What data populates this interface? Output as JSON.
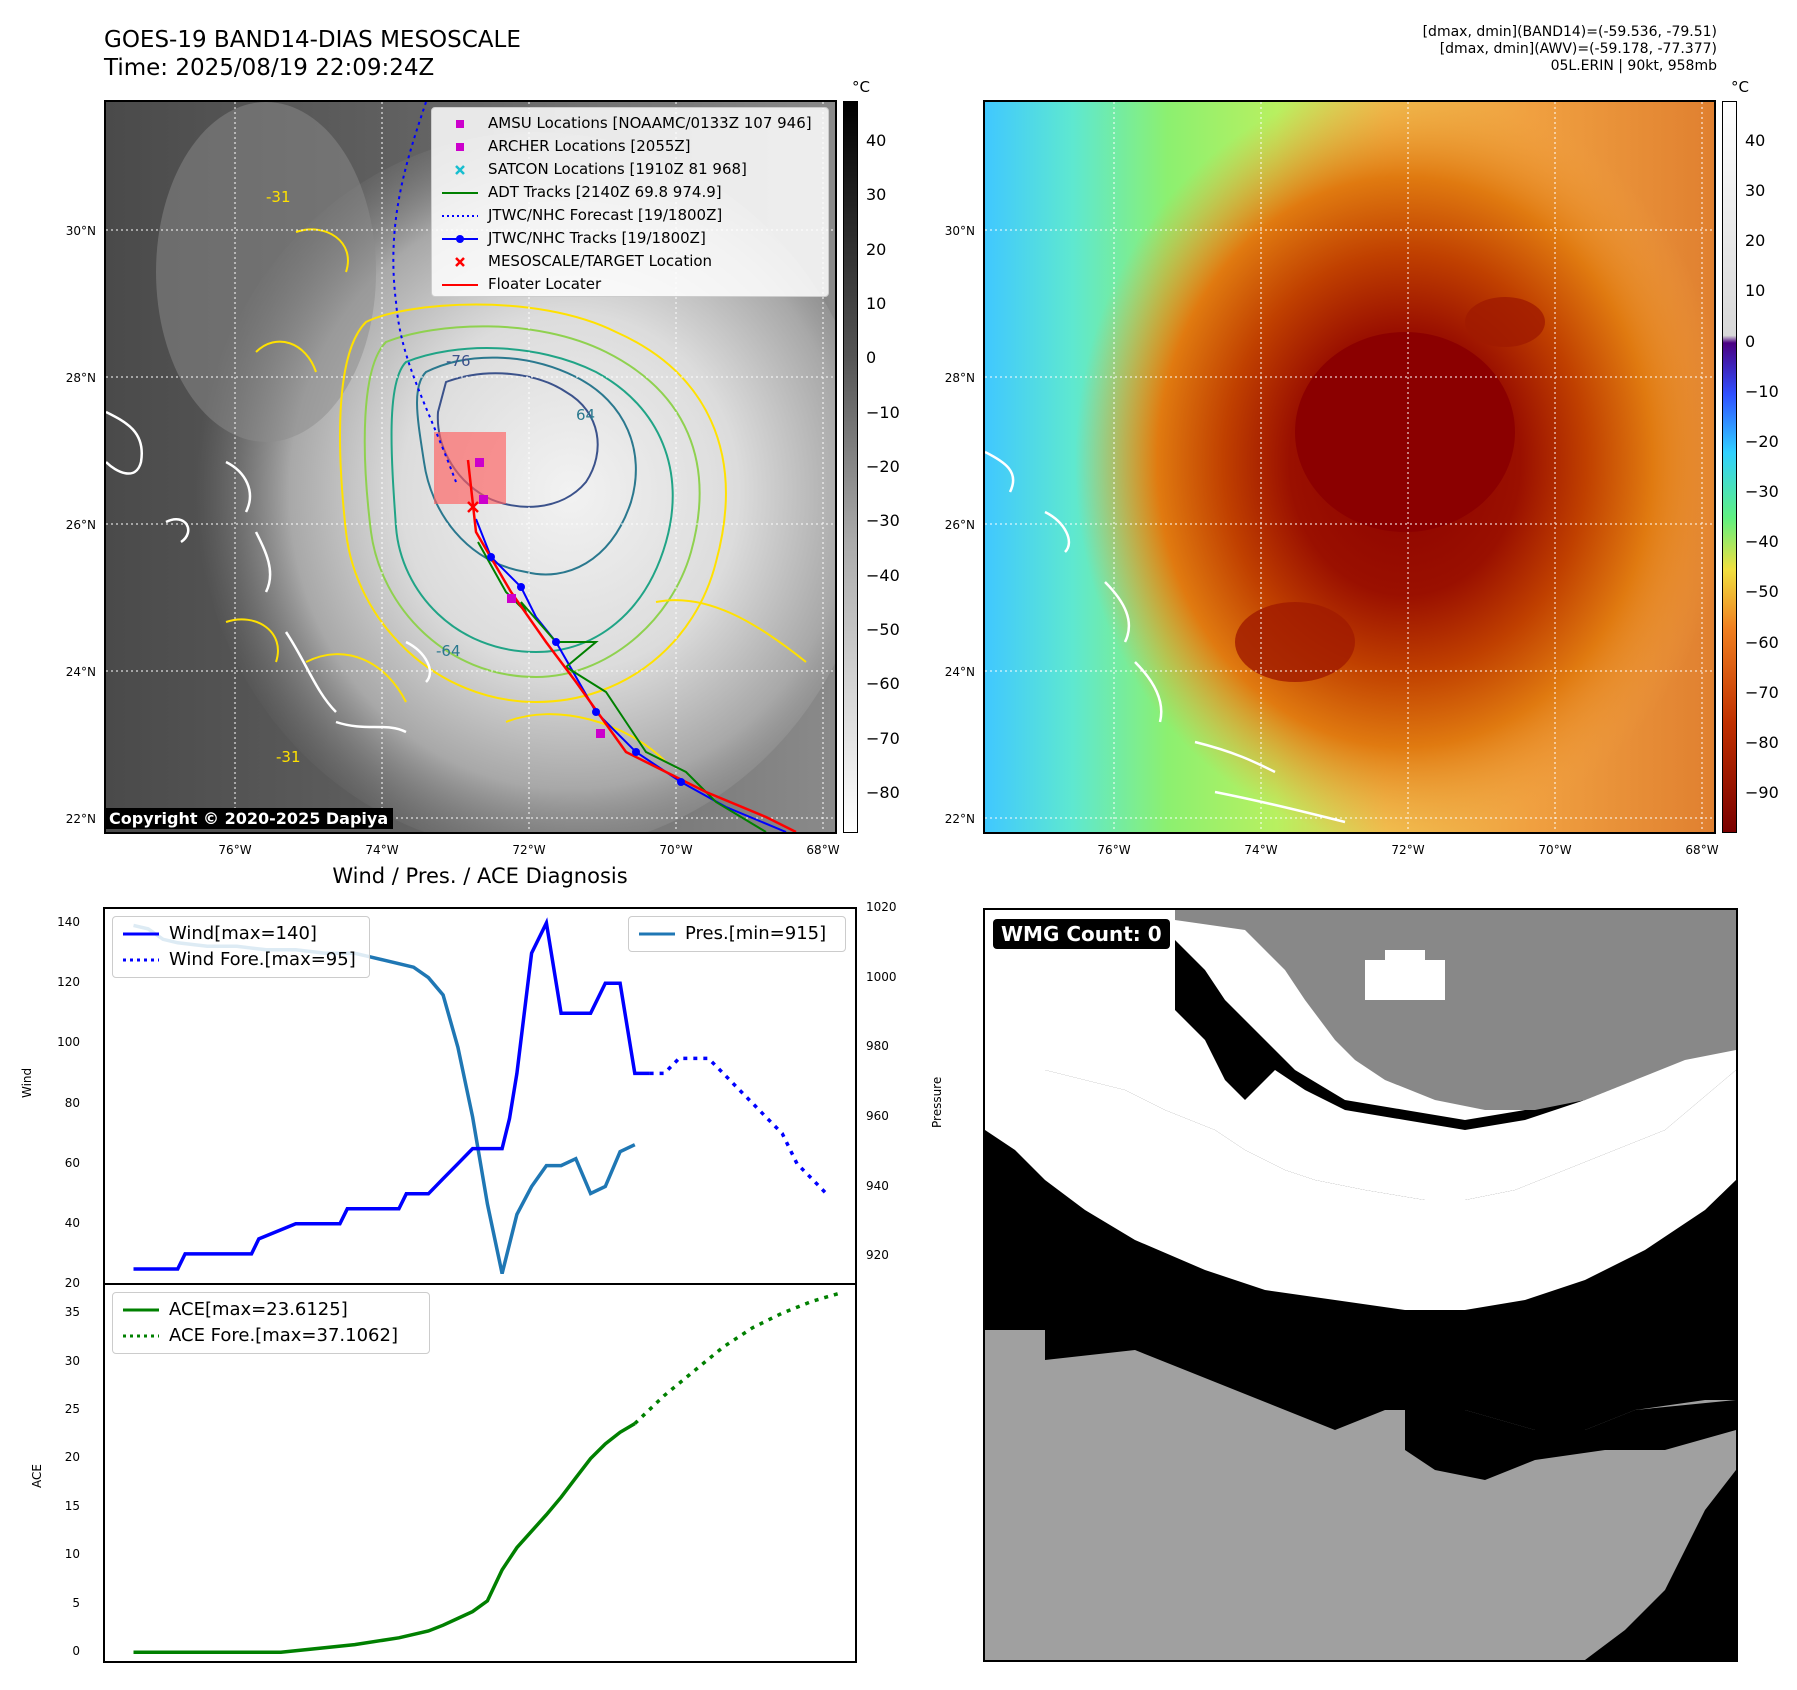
{
  "header": {
    "title_line1": "GOES-19 BAND14-DIAS MESOSCALE",
    "title_line2": "Time: 2025/08/19 22:09:24Z",
    "info_line1": "[dmax, dmin](BAND14)=(-59.536, -79.51)",
    "info_line2": "[dmax, dmin](AWV)=(-59.178, -77.377)",
    "info_line3": "05L.ERIN | 90kt, 958mb"
  },
  "map": {
    "lat_labels": [
      "30°N",
      "28°N",
      "26°N",
      "24°N",
      "22°N"
    ],
    "lon_labels": [
      "76°W",
      "74°W",
      "72°W",
      "70°W",
      "68°W"
    ],
    "copyright": "Copyright © 2020-2025 Dapiya",
    "contour_labels": [
      "-76",
      "-64",
      "64",
      "-31",
      "-31"
    ]
  },
  "legend": {
    "items": [
      "AMSU Locations [NOAAMC/0133Z 107 946]",
      "ARCHER Locations [2055Z]",
      "SATCON Locations [1910Z 81 968]",
      "ADT Tracks [2140Z 69.8 974.9]",
      "JTWC/NHC Forecast [19/1800Z]",
      "JTWC/NHC Tracks [19/1800Z]",
      "MESOSCALE/TARGET Location",
      "Floater Locater"
    ]
  },
  "colorbar_gray": {
    "unit": "°C",
    "ticks": [
      "40",
      "30",
      "20",
      "10",
      "0",
      "−10",
      "−20",
      "−30",
      "−40",
      "−50",
      "−60",
      "−70",
      "−80"
    ]
  },
  "colorbar_color": {
    "unit": "°C",
    "ticks": [
      "40",
      "30",
      "20",
      "10",
      "0",
      "−10",
      "−20",
      "−30",
      "−40",
      "−50",
      "−60",
      "−70",
      "−80",
      "−90"
    ]
  },
  "wmg": {
    "label": "WMG Count: 0"
  },
  "colors": {
    "wind": "#0000ff",
    "pressure": "#1f77b4",
    "ace": "#008000",
    "track_red": "#ff0000",
    "magenta": "#cc00cc",
    "cyan": "#17becf"
  },
  "chart_data": [
    {
      "type": "line",
      "title": "Wind / Pres. / ACE Diagnosis",
      "ylabel": "Wind",
      "y2label": "Pressure",
      "ylim": [
        20,
        145
      ],
      "y2lim": [
        912,
        1020
      ],
      "yticks": [
        "140",
        "120",
        "100",
        "80",
        "60",
        "40",
        "20"
      ],
      "y2ticks": [
        "1020",
        "1000",
        "980",
        "960",
        "940",
        "920"
      ],
      "legend_left": [
        "Wind[max=140]",
        "Wind Fore.[max=95]"
      ],
      "legend_right": [
        "Pres.[min=915]"
      ],
      "x": [
        0,
        3,
        5,
        6,
        8,
        9,
        11,
        12,
        14,
        16,
        18,
        19,
        20,
        21,
        22,
        23,
        24,
        25,
        25.5,
        26,
        27,
        28,
        29,
        30,
        31,
        32,
        33,
        34,
        35
      ],
      "series": [
        {
          "name": "Wind",
          "x": [
            0,
            3,
            3.5,
            5,
            5.5,
            8,
            8.5,
            11,
            11.5,
            14,
            14.5,
            15,
            18,
            18.5,
            20,
            21,
            22,
            23,
            25,
            25.5,
            26,
            27,
            28,
            29,
            30,
            31,
            32,
            33,
            34,
            35
          ],
          "values": [
            25,
            25,
            30,
            30,
            30,
            30,
            35,
            40,
            40,
            40,
            45,
            45,
            45,
            50,
            50,
            55,
            60,
            65,
            65,
            75,
            90,
            130,
            140,
            110,
            110,
            110,
            120,
            120,
            90,
            90
          ]
        },
        {
          "name": "Wind Fore.",
          "x": [
            35,
            36,
            37,
            38,
            39,
            40,
            41,
            42,
            43,
            44,
            45,
            46,
            47
          ],
          "values": [
            90,
            90,
            95,
            95,
            95,
            90,
            85,
            80,
            75,
            70,
            60,
            55,
            50
          ]
        },
        {
          "name": "Pres.",
          "x": [
            0,
            1,
            2,
            3,
            5,
            7,
            9,
            11,
            13,
            15,
            16,
            17,
            18,
            19,
            20,
            21,
            22,
            23,
            24,
            25,
            26,
            27,
            28,
            29,
            30,
            31,
            32,
            33,
            34
          ],
          "values": [
            1015,
            1014,
            1011,
            1010,
            1009,
            1009,
            1008,
            1008,
            1007,
            1007,
            1006,
            1005,
            1004,
            1003,
            1000,
            995,
            980,
            960,
            935,
            915,
            932,
            940,
            946,
            946,
            948,
            938,
            940,
            950,
            952
          ]
        }
      ]
    },
    {
      "type": "line",
      "ylabel": "ACE",
      "ylim": [
        -1,
        38
      ],
      "yticks": [
        "35",
        "30",
        "25",
        "20",
        "15",
        "10",
        "5",
        "0"
      ],
      "legend": [
        "ACE[max=23.6125]",
        "ACE Fore.[max=37.1062]"
      ],
      "series": [
        {
          "name": "ACE",
          "x": [
            0,
            5,
            10,
            15,
            18,
            20,
            21,
            22,
            23,
            24,
            25,
            26,
            27,
            28,
            29,
            30,
            31,
            32,
            33,
            34
          ],
          "values": [
            0,
            0,
            0,
            0.8,
            1.5,
            2.2,
            2.8,
            3.5,
            4.2,
            5.3,
            8.5,
            10.8,
            12.5,
            14.2,
            16,
            18,
            20,
            21.5,
            22.7,
            23.6
          ]
        },
        {
          "name": "ACE Fore.",
          "x": [
            34,
            36,
            38,
            40,
            42,
            44,
            46,
            48
          ],
          "values": [
            23.6,
            26.5,
            29,
            31.5,
            33.5,
            35,
            36.2,
            37.1
          ]
        }
      ]
    }
  ]
}
